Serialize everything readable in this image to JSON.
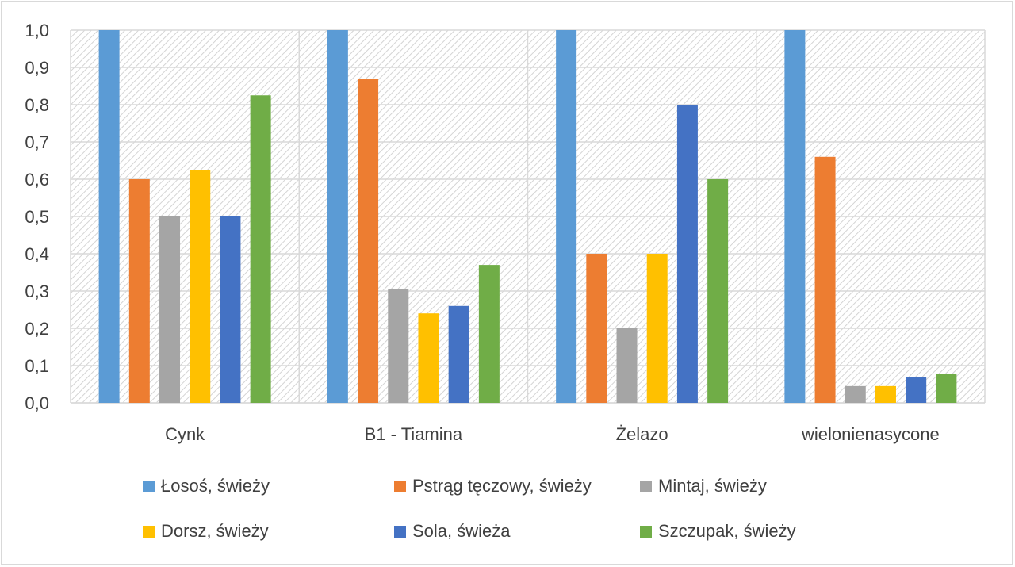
{
  "chart_data": {
    "type": "bar",
    "categories": [
      "Cynk",
      "B1 - Tiamina",
      "Żelazo",
      "wielonienasycone"
    ],
    "series": [
      {
        "name": "Łosoś, świeży",
        "color": "#5b9bd5",
        "values": [
          1.0,
          1.0,
          1.0,
          1.0
        ]
      },
      {
        "name": "Pstrąg tęczowy, świeży",
        "color": "#ed7d31",
        "values": [
          0.6,
          0.87,
          0.4,
          0.66
        ]
      },
      {
        "name": "Mintaj, świeży",
        "color": "#a5a5a5",
        "values": [
          0.5,
          0.305,
          0.2,
          0.045
        ]
      },
      {
        "name": "Dorsz, świeży",
        "color": "#ffc000",
        "values": [
          0.625,
          0.24,
          0.4,
          0.045
        ]
      },
      {
        "name": "Sola, świeża",
        "color": "#4472c4",
        "values": [
          0.5,
          0.26,
          0.8,
          0.07
        ]
      },
      {
        "name": "Szczupak, świeży",
        "color": "#70ad47",
        "values": [
          0.825,
          0.37,
          0.6,
          0.077
        ]
      }
    ],
    "yticks": [
      "0,0",
      "0,1",
      "0,2",
      "0,3",
      "0,4",
      "0,5",
      "0,6",
      "0,7",
      "0,8",
      "0,9",
      "1,0"
    ],
    "ylim": [
      0,
      1.0
    ],
    "grid": true,
    "legend_position": "bottom",
    "title": "",
    "xlabel": "",
    "ylabel": ""
  }
}
